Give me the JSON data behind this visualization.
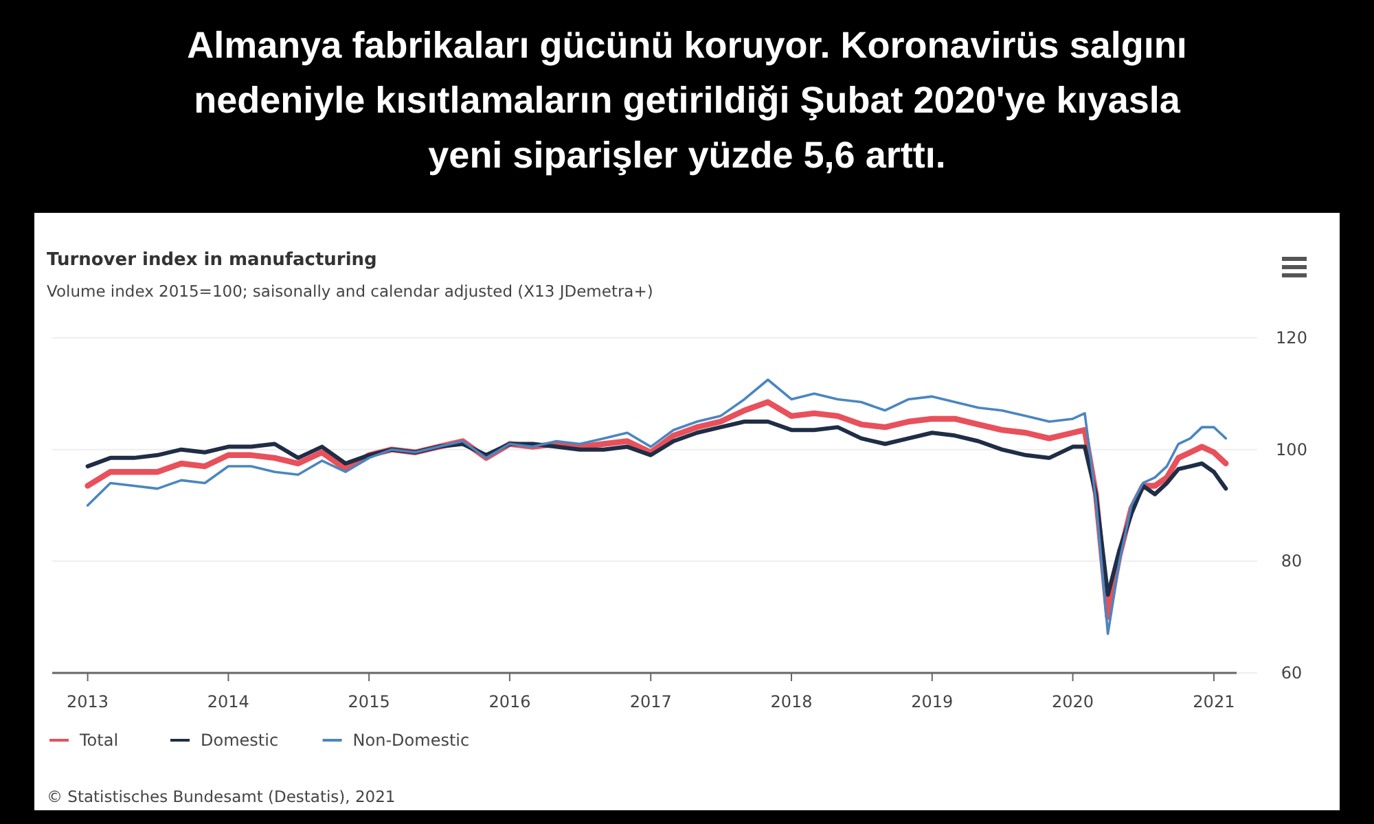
{
  "chart_data": {
    "type": "line",
    "title": "Almanya fabrikaları gücünü koruyor. Koronavirüs salgını nedeniyle kısıtlamaların getirildiği Şubat 2020'ye kıyasla yeni siparişler yüzde 5,6 arttı.",
    "subtitle": "Turnover index in manufacturing",
    "ylabel": "Volume index 2015=100; saisonally and calendar adjusted (X13 JDemetra+)",
    "annotations": [
      "© Statistisches Bundesamt (Destatis), 2021"
    ],
    "x": [
      "2013-01",
      "2013-03",
      "2013-05",
      "2013-07",
      "2013-09",
      "2013-11",
      "2014-01",
      "2014-03",
      "2014-05",
      "2014-07",
      "2014-09",
      "2014-11",
      "2015-01",
      "2015-03",
      "2015-05",
      "2015-07",
      "2015-09",
      "2015-11",
      "2016-01",
      "2016-03",
      "2016-05",
      "2016-07",
      "2016-09",
      "2016-11",
      "2017-01",
      "2017-03",
      "2017-05",
      "2017-07",
      "2017-09",
      "2017-11",
      "2018-01",
      "2018-03",
      "2018-05",
      "2018-07",
      "2018-09",
      "2018-11",
      "2019-01",
      "2019-03",
      "2019-05",
      "2019-07",
      "2019-09",
      "2019-11",
      "2020-01",
      "2020-02",
      "2020-03",
      "2020-04",
      "2020-05",
      "2020-06",
      "2020-07",
      "2020-08",
      "2020-09",
      "2020-10",
      "2020-11",
      "2020-12",
      "2021-01",
      "2021-02"
    ],
    "series": [
      {
        "name": "Total",
        "color": "#e8505b",
        "values": [
          93.5,
          96,
          96,
          96,
          97.5,
          97,
          99,
          99,
          98.5,
          97.5,
          99.5,
          96.5,
          99,
          100,
          99.5,
          100.5,
          101.5,
          98.5,
          101,
          100.5,
          101,
          100.5,
          101,
          101.5,
          99.5,
          102.5,
          104,
          105,
          107,
          108.5,
          106,
          106.5,
          106,
          104.5,
          104,
          105,
          105.5,
          105.5,
          104.5,
          103.5,
          103,
          102,
          103,
          103.5,
          92,
          70,
          81,
          89.5,
          93.5,
          93.5,
          95,
          98.5,
          99.5,
          100.5,
          99.5,
          97.5
        ]
      },
      {
        "name": "Domestic",
        "color": "#1f2d45",
        "values": [
          97,
          98.5,
          98.5,
          99,
          100,
          99.5,
          100.5,
          100.5,
          101,
          98.5,
          100.5,
          97.5,
          99,
          100,
          99.5,
          100.5,
          101,
          99,
          101,
          101,
          100.5,
          100,
          100,
          100.5,
          99,
          101.5,
          103,
          104,
          105,
          105,
          103.5,
          103.5,
          104,
          102,
          101,
          102,
          103,
          102.5,
          101.5,
          100,
          99,
          98.5,
          100.5,
          100.5,
          92,
          74,
          82,
          88.5,
          93.5,
          92,
          94,
          96.5,
          97,
          97.5,
          96,
          93
        ]
      },
      {
        "name": "Non-Domestic",
        "color": "#4a86c0",
        "values": [
          90,
          94,
          93.5,
          93,
          94.5,
          94,
          97,
          97,
          96,
          95.5,
          98,
          96,
          98.5,
          100,
          99.5,
          100.5,
          101.5,
          98.5,
          101,
          100.5,
          101.5,
          101,
          102,
          103,
          100.5,
          103.5,
          105,
          106,
          109,
          112.5,
          109,
          110,
          109,
          108.5,
          107,
          109,
          109.5,
          108.5,
          107.5,
          107,
          106,
          105,
          105.5,
          106.5,
          91,
          67,
          80,
          90,
          94,
          95,
          97,
          101,
          102,
          104,
          104,
          102
        ]
      }
    ],
    "xlim": [
      "2012-10",
      "2021-03"
    ],
    "xticks": [
      "2013",
      "2014",
      "2015",
      "2016",
      "2017",
      "2018",
      "2019",
      "2020",
      "2021"
    ],
    "ylim": [
      60,
      120
    ],
    "yticks": [
      60,
      80,
      100,
      120
    ],
    "grid": "y",
    "legend": "bottom left",
    "line_style": "solid",
    "marker": "none"
  }
}
